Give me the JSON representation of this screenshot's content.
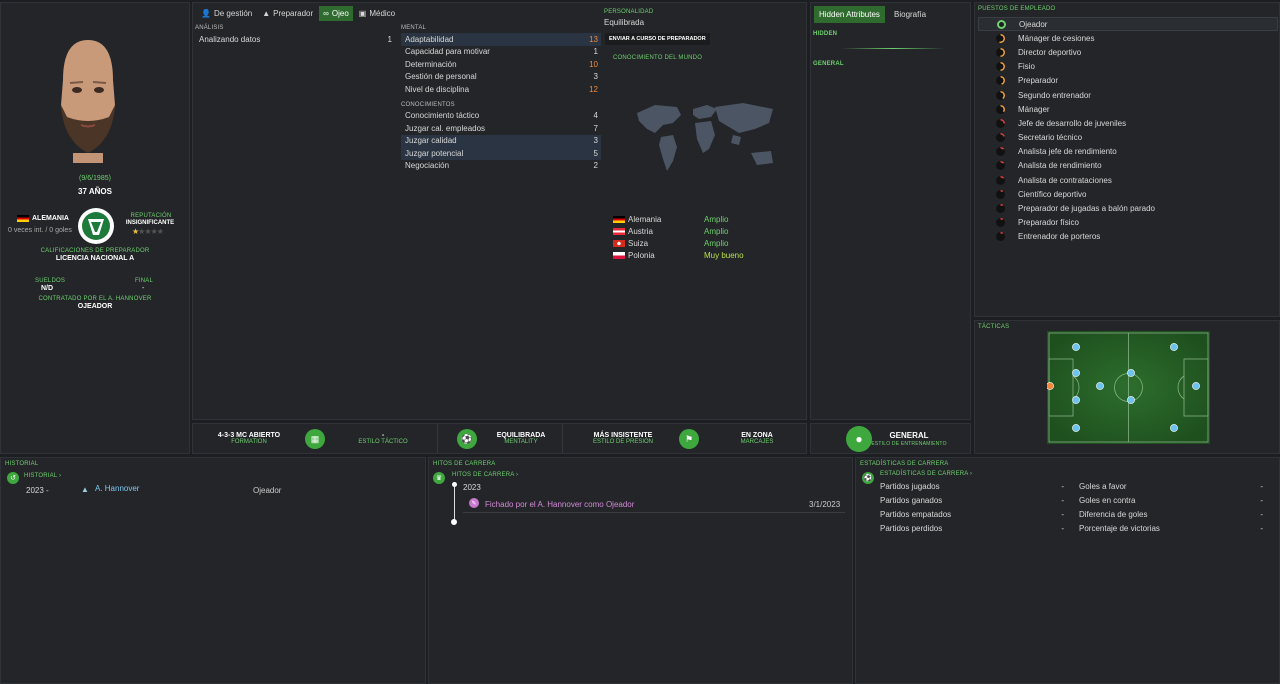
{
  "profile": {
    "dob": "(9/6/1985)",
    "age": "37 AÑOS",
    "nationality": "ALEMANIA",
    "caps": "0 veces int. / 0 goles",
    "reputation_label": "REPUTACIÓN",
    "reputation_value": "INSIGNIFICANTE",
    "reputation_stars": 0.5,
    "qual_label": "CALIFICACIONES DE PREPARADOR",
    "qual_value": "LICENCIA NACIONAL A",
    "wage_label": "SUELDOS",
    "wage_value": "N/D",
    "final_label": "FINAL",
    "final_value": "-",
    "contract_label": "CONTRATADO POR EL A. HANNOVER",
    "contract_value": "OJEADOR"
  },
  "tabs": [
    {
      "label": "De gestión",
      "icon": "person-icon",
      "active": false
    },
    {
      "label": "Preparador",
      "icon": "cone-icon",
      "active": false
    },
    {
      "label": "Ojeo",
      "icon": "binoculars-icon",
      "active": true
    },
    {
      "label": "Médico",
      "icon": "medical-kit-icon",
      "active": false
    }
  ],
  "analysis": {
    "title": "ANÁLISIS",
    "rows": [
      {
        "label": "Analizando datos",
        "value": "1"
      }
    ]
  },
  "mental": {
    "title": "MENTAL",
    "rows": [
      {
        "label": "Adaptabilidad",
        "value": "13",
        "hl": true,
        "orange": true
      },
      {
        "label": "Capacidad para motivar",
        "value": "1",
        "hl": false,
        "orange": false
      },
      {
        "label": "Determinación",
        "value": "10",
        "hl": false,
        "orange": true
      },
      {
        "label": "Gestión de personal",
        "value": "3",
        "hl": false,
        "orange": false
      },
      {
        "label": "Nivel de disciplina",
        "value": "12",
        "hl": false,
        "orange": true
      }
    ]
  },
  "knowledge": {
    "title": "CONOCIMIENTOS",
    "rows": [
      {
        "label": "Conocimiento táctico",
        "value": "4",
        "hl": false,
        "orange": false
      },
      {
        "label": "Juzgar cal. empleados",
        "value": "7",
        "hl": false,
        "orange": false
      },
      {
        "label": "Juzgar calidad",
        "value": "3",
        "hl": true,
        "orange": false
      },
      {
        "label": "Juzgar potencial",
        "value": "5",
        "hl": true,
        "orange": false
      },
      {
        "label": "Negociación",
        "value": "2",
        "hl": false,
        "orange": false
      }
    ]
  },
  "personality": {
    "title": "PERSONALIDAD",
    "value": "Equilibrada",
    "course_button": "ENVIAR A CURSO DE PREPARADOR"
  },
  "world": {
    "title": "CONOCIMIENTO DEL MUNDO",
    "countries": [
      {
        "name": "Alemania",
        "level": "Amplio",
        "flag": "de"
      },
      {
        "name": "Austria",
        "level": "Amplio",
        "flag": "at"
      },
      {
        "name": "Suiza",
        "level": "Amplio",
        "flag": "ch"
      },
      {
        "name": "Polonia",
        "level": "Muy bueno",
        "flag": "pl"
      }
    ]
  },
  "tactics_bar": {
    "formation_value": "4-3-3 MC ABIERTO",
    "formation_label": "FORMATION",
    "style_value": "-",
    "style_label": "ESTILO TÁCTICO",
    "mentality_value": "EQUILIBRADA",
    "mentality_label": "MENTALITY",
    "press_value": "MÁS INSISTENTE",
    "press_label": "ESTILO DE PRESIÓN",
    "marking_value": "EN ZONA",
    "marking_label": "MARCAJES"
  },
  "hidden": {
    "tab_hidden": "Hidden Attributes",
    "tab_bio": "Biografía",
    "hidden_title": "HIDDEN",
    "general_title": "GENERAL",
    "training_value": "GENERAL",
    "training_label": "ESTILO DE ENTRENAMIENTO"
  },
  "roles": {
    "title": "PUESTOS DE EMPLEADO",
    "items": [
      {
        "label": "Ojeador",
        "level": 1.0,
        "selected": true
      },
      {
        "label": "Mánager de cesiones",
        "level": 0.55,
        "selected": false
      },
      {
        "label": "Director deportivo",
        "level": 0.5,
        "selected": false
      },
      {
        "label": "Fisio",
        "level": 0.5,
        "selected": false
      },
      {
        "label": "Preparador",
        "level": 0.45,
        "selected": false
      },
      {
        "label": "Segundo entrenador",
        "level": 0.4,
        "selected": false
      },
      {
        "label": "Mánager",
        "level": 0.35,
        "selected": false
      },
      {
        "label": "Jefe de desarrollo de juveniles",
        "level": 0.25,
        "selected": false
      },
      {
        "label": "Secretario técnico",
        "level": 0.2,
        "selected": false
      },
      {
        "label": "Analista jefe de rendimiento",
        "level": 0.15,
        "selected": false
      },
      {
        "label": "Analista de rendimiento",
        "level": 0.15,
        "selected": false
      },
      {
        "label": "Analista de contrataciones",
        "level": 0.15,
        "selected": false
      },
      {
        "label": "Científico deportivo",
        "level": 0.1,
        "selected": false
      },
      {
        "label": "Preparador de jugadas a balón parado",
        "level": 0.1,
        "selected": false
      },
      {
        "label": "Preparador físico",
        "level": 0.1,
        "selected": false
      },
      {
        "label": "Entrenador de porteros",
        "level": 0.1,
        "selected": false
      }
    ]
  },
  "tactics_panel": {
    "title": "TÁCTICAS"
  },
  "history": {
    "title": "HISTORIAL",
    "link": "HISTORIAL ›",
    "rows": [
      {
        "years": "2023 -",
        "club": "A. Hannover",
        "role": "Ojeador"
      }
    ]
  },
  "milestones": {
    "title": "HITOS DE CARRERA",
    "link": "HITOS DE CARRERA ›",
    "year": "2023",
    "event": "Fichado por el A. Hannover como Ojeador",
    "date": "3/1/2023"
  },
  "career_stats": {
    "title": "ESTADÍSTICAS DE CARRERA",
    "link": "ESTADÍSTICAS DE CARRERA ›",
    "left": [
      {
        "label": "Partidos jugados",
        "value": "-"
      },
      {
        "label": "Partidos ganados",
        "value": "-"
      },
      {
        "label": "Partidos empatados",
        "value": "-"
      },
      {
        "label": "Partidos perdidos",
        "value": "-"
      }
    ],
    "right": [
      {
        "label": "Goles a favor",
        "value": "-"
      },
      {
        "label": "Goles en contra",
        "value": "-"
      },
      {
        "label": "Diferencia de goles",
        "value": "-"
      },
      {
        "label": "Porcentaje de victorias",
        "value": "-"
      }
    ]
  },
  "colors": {
    "accent": "#6fd06f",
    "orange": "#f08a3a",
    "highlight": "#2a3442"
  }
}
